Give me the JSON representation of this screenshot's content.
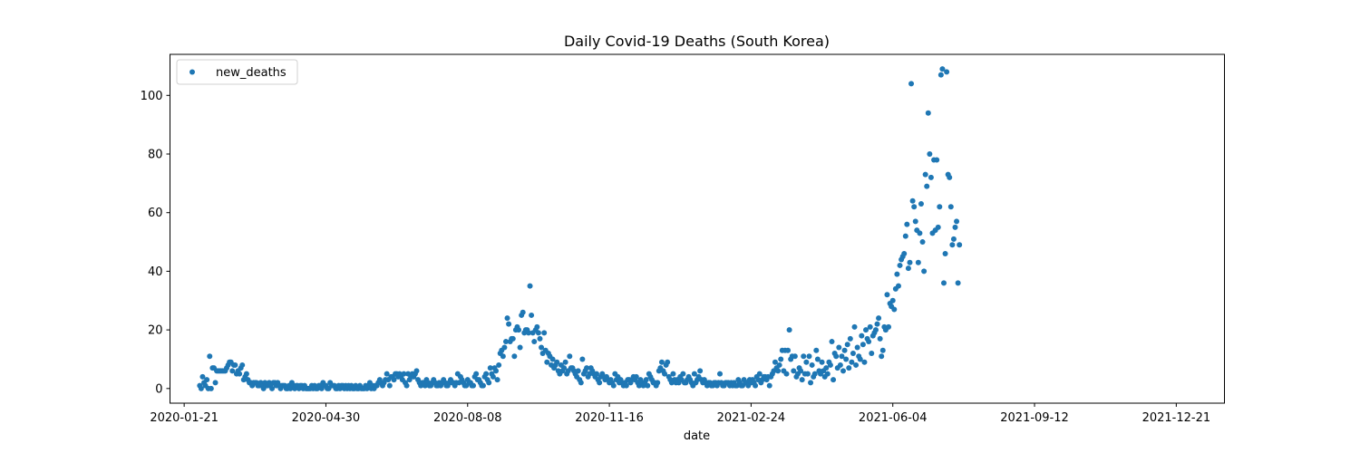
{
  "chart_data": {
    "type": "scatter",
    "title": "Daily Covid-19 Deaths (South Korea)",
    "xlabel": "date",
    "ylabel": "",
    "x_axis": "date",
    "xlim": [
      "2020-01-11",
      "2022-01-24"
    ],
    "ylim": [
      -5,
      114
    ],
    "grid": false,
    "legend_position": "top-left",
    "marker_color": "#1f77b4",
    "x_ticks": [
      "2020-01-21",
      "2020-04-30",
      "2020-08-08",
      "2020-11-16",
      "2021-02-24",
      "2021-06-04",
      "2021-09-12",
      "2021-12-21"
    ],
    "y_ticks": [
      0,
      20,
      40,
      60,
      80,
      100
    ],
    "series": [
      {
        "name": "new_deaths",
        "start_date": "2020-02-01",
        "values": [
          1,
          0,
          4,
          2,
          1,
          3,
          0,
          11,
          0,
          7,
          7,
          2,
          6,
          6,
          6,
          6,
          6,
          6,
          6,
          7,
          8,
          9,
          9,
          6,
          8,
          8,
          5,
          6,
          5,
          7,
          8,
          3,
          4,
          5,
          3,
          2,
          2,
          1,
          2,
          2,
          2,
          1,
          1,
          2,
          1,
          0,
          2,
          1,
          1,
          2,
          1,
          0,
          2,
          2,
          1,
          2,
          1,
          0,
          1,
          1,
          1,
          0,
          0,
          1,
          0,
          2,
          1,
          0,
          1,
          1,
          0,
          1,
          1,
          0,
          1,
          0,
          0,
          0,
          0,
          1,
          0,
          1,
          0,
          0,
          1,
          1,
          0,
          2,
          1,
          1,
          0,
          0,
          2,
          1,
          1,
          1,
          0,
          0,
          1,
          0,
          1,
          1,
          0,
          1,
          0,
          1,
          0,
          1,
          0,
          0,
          1,
          0,
          0,
          1,
          0,
          0,
          0,
          1,
          0,
          1,
          2,
          0,
          1,
          0,
          1,
          1,
          2,
          3,
          2,
          1,
          2,
          3,
          5,
          3,
          1,
          4,
          4,
          3,
          5,
          5,
          4,
          5,
          4,
          3,
          5,
          2,
          1,
          5,
          3,
          4,
          5,
          4,
          5,
          6,
          3,
          2,
          1,
          2,
          2,
          1,
          3,
          2,
          1,
          1,
          2,
          3,
          2,
          1,
          1,
          2,
          1,
          2,
          3,
          2,
          1,
          1,
          2,
          3,
          2,
          2,
          1,
          2,
          5,
          2,
          4,
          3,
          2,
          1,
          1,
          3,
          2,
          2,
          1,
          1,
          4,
          5,
          3,
          3,
          2,
          1,
          1,
          4,
          5,
          3,
          2,
          7,
          5,
          4,
          7,
          6,
          3,
          8,
          12,
          13,
          11,
          14,
          16,
          24,
          22,
          16,
          17,
          17,
          11,
          20,
          21,
          20,
          14,
          25,
          26,
          19,
          20,
          20,
          19,
          35,
          25,
          19,
          16,
          20,
          21,
          19,
          17,
          14,
          12,
          19,
          13,
          9,
          12,
          11,
          8,
          10,
          7,
          8,
          9,
          6,
          5,
          8,
          6,
          7,
          9,
          5,
          6,
          11,
          7,
          7,
          6,
          5,
          4,
          6,
          3,
          2,
          10,
          5,
          6,
          7,
          4,
          5,
          7,
          6,
          5,
          4,
          5,
          3,
          2,
          4,
          5,
          4,
          3,
          4,
          3,
          2,
          3,
          2,
          1,
          5,
          3,
          4,
          2,
          3,
          2,
          1,
          2,
          1,
          3,
          3,
          2,
          3,
          4,
          3,
          4,
          2,
          1,
          3,
          2,
          1,
          2,
          3,
          1,
          5,
          4,
          3,
          2,
          2,
          1,
          2,
          6,
          7,
          9,
          6,
          5,
          8,
          9,
          4,
          3,
          2,
          5,
          3,
          2,
          3,
          2,
          4,
          3,
          5,
          2,
          2,
          3,
          4,
          3,
          2,
          1,
          5,
          2,
          3,
          4,
          6,
          3,
          2,
          3,
          2,
          1,
          2,
          2,
          1,
          1,
          2,
          2,
          1,
          2,
          5,
          2,
          1,
          1,
          2,
          2,
          2,
          1,
          2,
          1,
          2,
          1,
          1,
          3,
          2,
          1,
          1,
          3,
          2,
          2,
          1,
          3,
          2,
          3,
          2,
          1,
          4,
          3,
          5,
          2,
          3,
          4,
          4,
          3,
          4,
          1,
          4,
          5,
          6,
          9,
          7,
          6,
          8,
          10,
          13,
          6,
          13,
          5,
          13,
          20,
          10,
          11,
          6,
          11,
          4,
          5,
          7,
          6,
          3,
          11,
          5,
          9,
          5,
          11,
          2,
          8,
          4,
          5,
          13,
          10,
          6,
          5,
          9,
          6,
          4,
          7,
          5,
          9,
          8,
          16,
          3,
          12,
          11,
          7,
          14,
          8,
          11,
          6,
          13,
          10,
          15,
          7,
          17,
          9,
          12,
          21,
          8,
          14,
          11,
          10,
          18,
          15,
          9,
          20,
          17,
          16,
          21,
          12,
          18,
          19,
          20,
          22,
          24,
          17,
          11,
          13,
          21,
          20,
          32,
          21,
          29,
          28,
          30,
          27,
          34,
          39,
          35,
          42,
          44,
          45,
          46,
          52,
          56,
          41,
          43,
          104,
          64,
          62,
          57,
          54,
          43,
          53,
          63,
          50,
          40,
          73,
          69,
          94,
          80,
          72,
          53,
          78,
          54,
          78,
          55,
          62,
          107,
          109,
          36,
          46,
          108,
          73,
          72,
          62,
          49,
          51,
          55,
          57,
          36,
          49
        ]
      }
    ]
  }
}
